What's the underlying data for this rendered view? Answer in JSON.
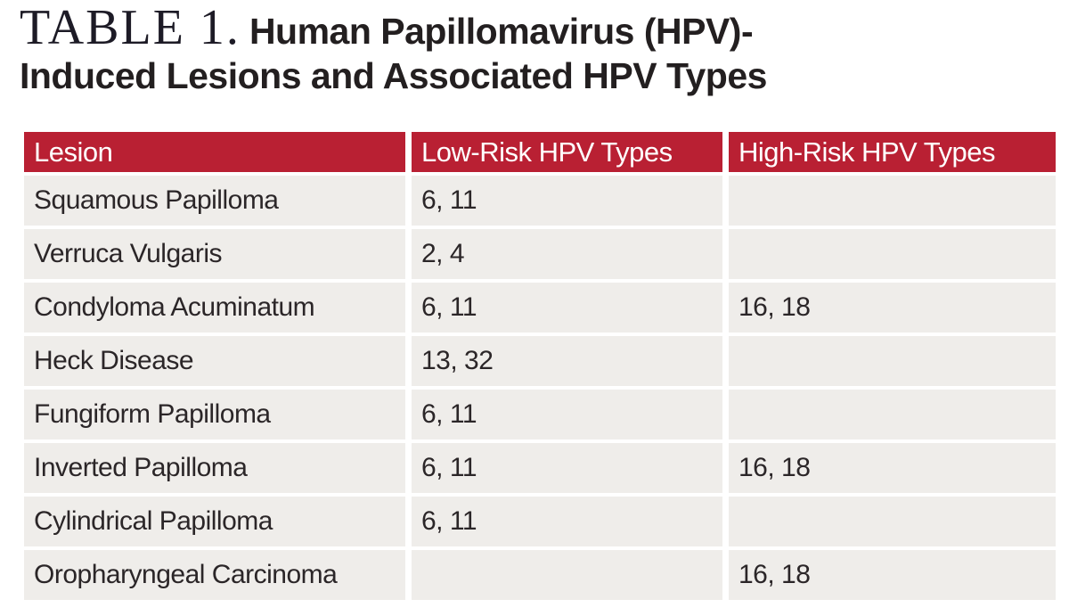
{
  "title": {
    "label": "TABLE 1.",
    "line1": "Human Papillomavirus (HPV)-",
    "line2": "Induced Lesions and Associated HPV Types"
  },
  "colors": {
    "header_bg": "#b92033",
    "row_bg": "#efedea",
    "header_text": "#ffffff",
    "body_text": "#2b2628",
    "title_text": "#231f20"
  },
  "chart_data": {
    "type": "table",
    "title": "TABLE 1. Human Papillomavirus (HPV)-Induced Lesions and Associated HPV Types",
    "columns": [
      "Lesion",
      "Low-Risk HPV Types",
      "High-Risk HPV Types"
    ],
    "rows": [
      [
        "Squamous Papilloma",
        "6, 11",
        ""
      ],
      [
        "Verruca Vulgaris",
        "2, 4",
        ""
      ],
      [
        "Condyloma Acuminatum",
        "6, 11",
        "16, 18"
      ],
      [
        "Heck Disease",
        "13, 32",
        ""
      ],
      [
        "Fungiform Papilloma",
        "6, 11",
        ""
      ],
      [
        "Inverted Papilloma",
        "6, 11",
        "16, 18"
      ],
      [
        "Cylindrical Papilloma",
        "6, 11",
        ""
      ],
      [
        "Oropharyngeal Carcinoma",
        "",
        "16, 18"
      ]
    ]
  },
  "table": {
    "columns": [
      "Lesion",
      "Low-Risk HPV Types",
      "High-Risk HPV Types"
    ],
    "rows": [
      {
        "lesion": "Squamous Papilloma",
        "low_risk": "6, 11",
        "high_risk": ""
      },
      {
        "lesion": "Verruca Vulgaris",
        "low_risk": "2, 4",
        "high_risk": ""
      },
      {
        "lesion": "Condyloma Acuminatum",
        "low_risk": "6, 11",
        "high_risk": "16, 18"
      },
      {
        "lesion": "Heck Disease",
        "low_risk": "13, 32",
        "high_risk": ""
      },
      {
        "lesion": "Fungiform Papilloma",
        "low_risk": "6, 11",
        "high_risk": ""
      },
      {
        "lesion": "Inverted Papilloma",
        "low_risk": "6, 11",
        "high_risk": "16, 18"
      },
      {
        "lesion": "Cylindrical Papilloma",
        "low_risk": "6, 11",
        "high_risk": ""
      },
      {
        "lesion": "Oropharyngeal Carcinoma",
        "low_risk": "",
        "high_risk": "16, 18"
      }
    ]
  }
}
